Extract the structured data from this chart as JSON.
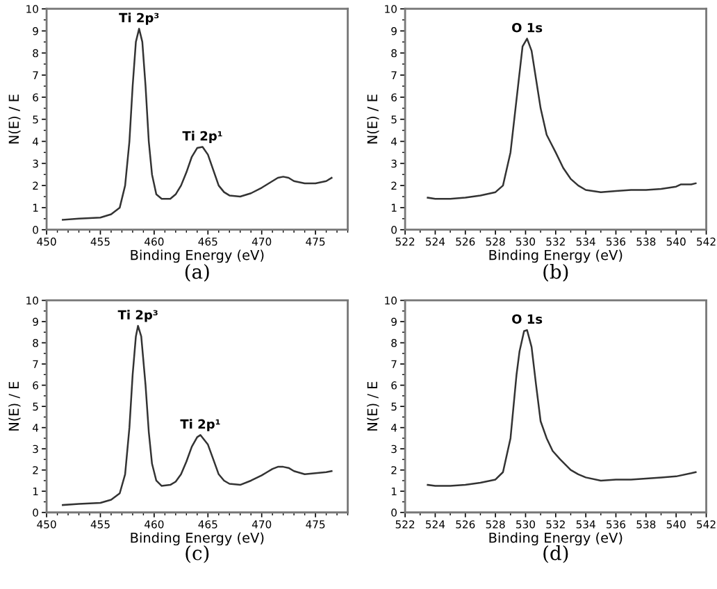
{
  "chart_data": [
    {
      "type": "line",
      "xlabel": "Binding Energy (eV)",
      "ylabel": "N(E) / E",
      "xlim": [
        450,
        478
      ],
      "xticks": [
        450,
        455,
        460,
        465,
        470,
        475
      ],
      "ylim": [
        0,
        10
      ],
      "yticks": [
        0,
        1,
        2,
        3,
        4,
        5,
        6,
        7,
        8,
        9,
        10
      ],
      "series": [
        {
          "color": "#333333",
          "x": [
            451.5,
            453,
            455,
            456,
            456.8,
            457.3,
            457.7,
            458.0,
            458.3,
            458.6,
            458.9,
            459.2,
            459.5,
            459.8,
            460.2,
            460.7,
            461.5,
            462,
            462.5,
            463,
            463.5,
            464,
            464.5,
            465,
            465.5,
            466,
            466.5,
            467,
            468,
            469,
            470,
            470.5,
            471,
            471.5,
            472,
            472.5,
            473,
            474,
            475,
            476,
            476.5
          ],
          "values": [
            0.45,
            0.5,
            0.55,
            0.7,
            1.0,
            2,
            4,
            6.5,
            8.5,
            9.1,
            8.5,
            6.5,
            4,
            2.5,
            1.6,
            1.4,
            1.4,
            1.6,
            2.0,
            2.6,
            3.3,
            3.7,
            3.75,
            3.4,
            2.7,
            2.0,
            1.7,
            1.55,
            1.5,
            1.65,
            1.9,
            2.05,
            2.2,
            2.35,
            2.4,
            2.35,
            2.2,
            2.1,
            2.1,
            2.2,
            2.35
          ]
        }
      ],
      "annotations": [
        {
          "text": "Ti 2p³",
          "x": 458.6,
          "y": 9.1
        },
        {
          "text": "Ti 2p¹",
          "x": 464.5,
          "y": 3.75
        },
        "(a)"
      ]
    },
    {
      "type": "line",
      "xlabel": "Binding Energy (eV)",
      "ylabel": "N(E) / E",
      "xlim": [
        522,
        542
      ],
      "xticks": [
        522,
        524,
        526,
        528,
        530,
        532,
        534,
        536,
        538,
        540,
        542
      ],
      "ylim": [
        0,
        10
      ],
      "yticks": [
        0,
        1,
        2,
        3,
        4,
        5,
        6,
        7,
        8,
        9,
        10
      ],
      "series": [
        {
          "color": "#333333",
          "x": [
            523.5,
            524,
            525,
            526,
            527,
            528,
            528.5,
            529,
            529.5,
            529.8,
            530.1,
            530.4,
            530.7,
            531,
            531.4,
            531.7,
            532,
            532.5,
            533,
            533.5,
            534,
            535,
            536,
            537,
            538,
            539,
            540,
            540.3,
            541,
            541.3
          ],
          "values": [
            1.45,
            1.4,
            1.4,
            1.45,
            1.55,
            1.7,
            2.0,
            3.5,
            6.5,
            8.3,
            8.65,
            8.1,
            6.8,
            5.5,
            4.3,
            3.9,
            3.5,
            2.8,
            2.3,
            2.0,
            1.8,
            1.7,
            1.75,
            1.8,
            1.8,
            1.85,
            1.95,
            2.05,
            2.05,
            2.1
          ]
        }
      ],
      "annotations": [
        {
          "text": "O 1s",
          "x": 530.1,
          "y": 8.65
        },
        "(b)"
      ]
    },
    {
      "type": "line",
      "xlabel": "Binding Energy (eV)",
      "ylabel": "N(E) / E",
      "xlim": [
        450,
        478
      ],
      "xticks": [
        450,
        455,
        460,
        465,
        470,
        475
      ],
      "ylim": [
        0,
        10
      ],
      "yticks": [
        0,
        1,
        2,
        3,
        4,
        5,
        6,
        7,
        8,
        9,
        10
      ],
      "series": [
        {
          "color": "#333333",
          "x": [
            451.5,
            453,
            455,
            456,
            456.8,
            457.3,
            457.7,
            458.0,
            458.3,
            458.5,
            458.8,
            459.2,
            459.5,
            459.8,
            460.2,
            460.7,
            461.5,
            462,
            462.5,
            463,
            463.5,
            464,
            464.3,
            465,
            465.5,
            466,
            466.5,
            467,
            468,
            469,
            470,
            470.5,
            471,
            471.5,
            472,
            472.5,
            473,
            474,
            475,
            476,
            476.5
          ],
          "values": [
            0.35,
            0.4,
            0.45,
            0.6,
            0.9,
            1.8,
            4,
            6.5,
            8.3,
            8.8,
            8.3,
            6,
            3.8,
            2.3,
            1.5,
            1.25,
            1.3,
            1.45,
            1.8,
            2.4,
            3.1,
            3.55,
            3.65,
            3.2,
            2.5,
            1.8,
            1.5,
            1.35,
            1.3,
            1.5,
            1.75,
            1.9,
            2.05,
            2.15,
            2.15,
            2.1,
            1.95,
            1.8,
            1.85,
            1.9,
            1.95
          ]
        }
      ],
      "annotations": [
        {
          "text": "Ti 2p³",
          "x": 458.5,
          "y": 8.8
        },
        {
          "text": "Ti 2p¹",
          "x": 464.3,
          "y": 3.65
        },
        "(c)"
      ]
    },
    {
      "type": "line",
      "xlabel": "Binding Energy (eV)",
      "ylabel": "N(E) / E",
      "xlim": [
        522,
        542
      ],
      "xticks": [
        522,
        524,
        526,
        528,
        530,
        532,
        534,
        536,
        538,
        540,
        542
      ],
      "ylim": [
        0,
        10
      ],
      "yticks": [
        0,
        1,
        2,
        3,
        4,
        5,
        6,
        7,
        8,
        9,
        10
      ],
      "series": [
        {
          "color": "#333333",
          "x": [
            523.5,
            524,
            525,
            526,
            527,
            528,
            528.5,
            529,
            529.4,
            529.6,
            529.9,
            530.1,
            530.4,
            530.7,
            531,
            531.4,
            531.8,
            532.3,
            533,
            533.5,
            534,
            535,
            536,
            537,
            538,
            539,
            540,
            541,
            541.3
          ],
          "values": [
            1.3,
            1.25,
            1.25,
            1.3,
            1.4,
            1.55,
            1.9,
            3.5,
            6.5,
            7.6,
            8.55,
            8.6,
            7.8,
            6.0,
            4.3,
            3.5,
            2.9,
            2.5,
            2.0,
            1.8,
            1.65,
            1.5,
            1.55,
            1.55,
            1.6,
            1.65,
            1.7,
            1.85,
            1.9
          ]
        }
      ],
      "annotations": [
        {
          "text": "O 1s",
          "x": 530.1,
          "y": 8.6
        },
        "(d)"
      ]
    }
  ]
}
